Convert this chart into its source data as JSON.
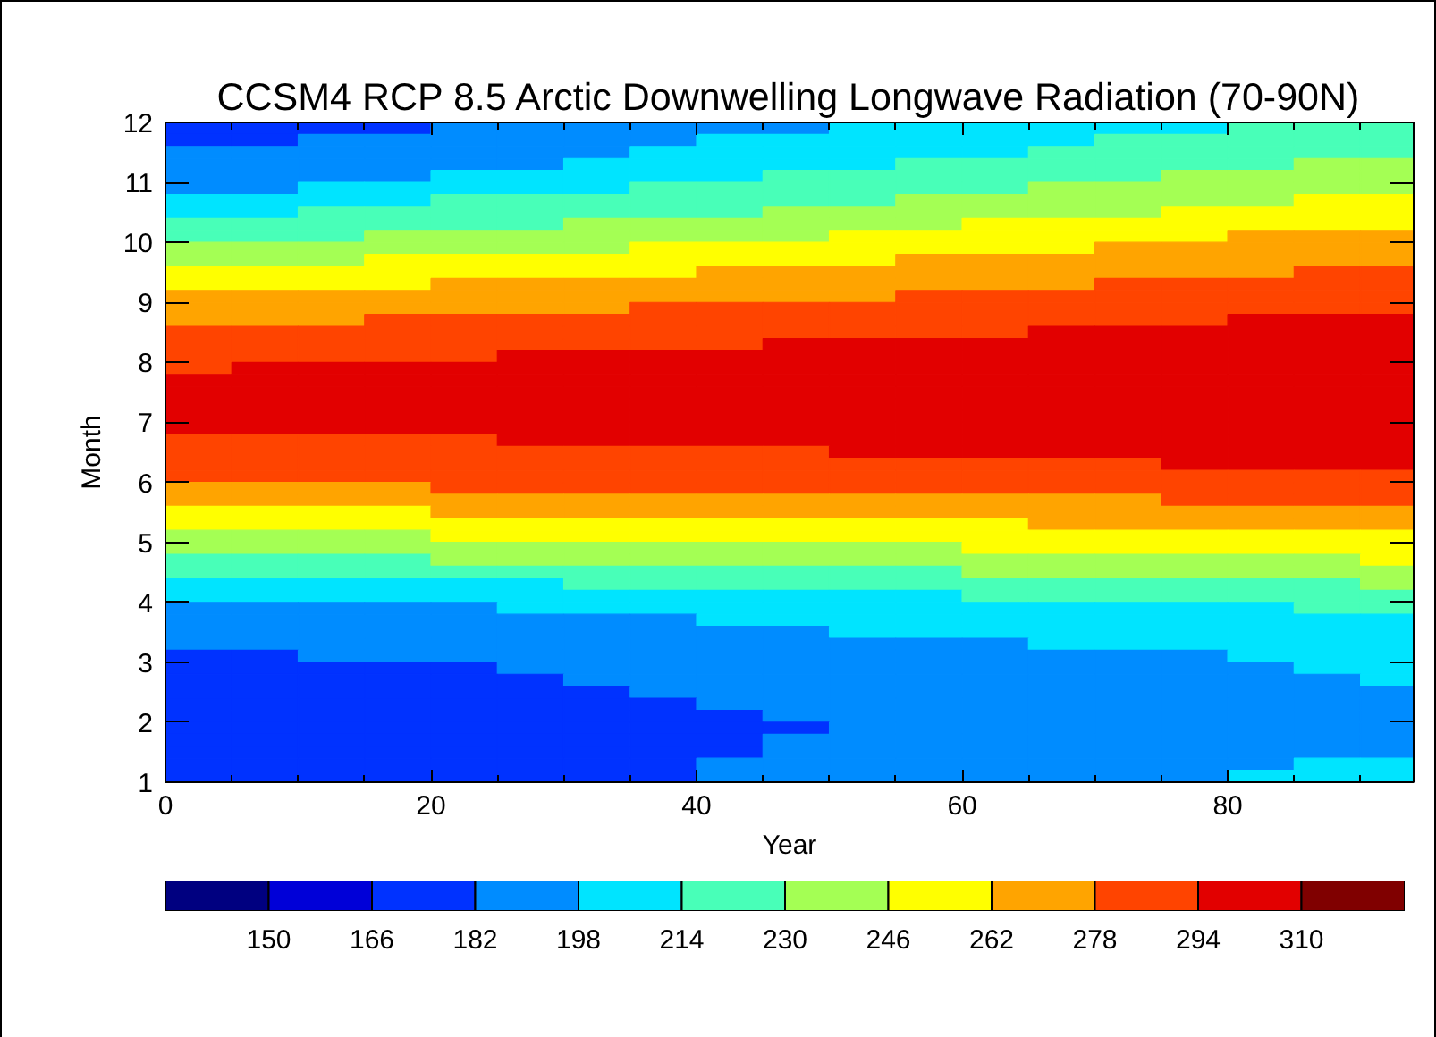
{
  "chart_data": {
    "type": "heatmap",
    "title": "CCSM4 RCP 8.5 Arctic Downwelling Longwave Radiation (70-90N)",
    "xlabel": "Year",
    "ylabel": "Month",
    "x": [
      2.5,
      7.5,
      12.5,
      17.5,
      22.5,
      27.5,
      32.5,
      37.5,
      42.5,
      47.5,
      52.5,
      57.5,
      62.5,
      67.5,
      72.5,
      77.5,
      82.5,
      87.5,
      92.5
    ],
    "cells": [
      [
        174,
        174,
        174,
        174,
        190,
        190,
        190,
        190,
        190,
        190,
        206,
        206,
        206,
        206,
        206,
        206,
        222,
        222,
        222
      ],
      [
        174,
        174,
        190,
        190,
        190,
        190,
        190,
        190,
        206,
        206,
        206,
        206,
        206,
        206,
        222,
        222,
        222,
        222,
        222
      ],
      [
        190,
        190,
        190,
        190,
        190,
        190,
        190,
        206,
        206,
        206,
        206,
        206,
        206,
        222,
        222,
        222,
        222,
        222,
        222
      ],
      [
        190,
        190,
        190,
        190,
        190,
        190,
        206,
        206,
        206,
        206,
        206,
        222,
        222,
        222,
        222,
        222,
        222,
        238,
        238
      ],
      [
        190,
        190,
        190,
        190,
        206,
        206,
        206,
        206,
        206,
        222,
        222,
        222,
        222,
        222,
        222,
        238,
        238,
        238,
        238
      ],
      [
        190,
        190,
        206,
        206,
        206,
        206,
        206,
        222,
        222,
        222,
        222,
        222,
        222,
        238,
        238,
        238,
        238,
        238,
        238
      ],
      [
        206,
        206,
        206,
        206,
        222,
        222,
        222,
        222,
        222,
        222,
        222,
        238,
        238,
        238,
        238,
        238,
        238,
        254,
        254
      ],
      [
        206,
        206,
        222,
        222,
        222,
        222,
        222,
        222,
        222,
        238,
        238,
        238,
        238,
        238,
        238,
        254,
        254,
        254,
        254
      ],
      [
        222,
        222,
        222,
        222,
        222,
        222,
        238,
        238,
        238,
        238,
        238,
        238,
        254,
        254,
        254,
        254,
        254,
        254,
        254
      ],
      [
        222,
        222,
        222,
        238,
        238,
        238,
        238,
        238,
        238,
        238,
        254,
        254,
        254,
        254,
        254,
        254,
        270,
        270,
        270
      ],
      [
        238,
        238,
        238,
        238,
        238,
        238,
        238,
        254,
        254,
        254,
        254,
        254,
        254,
        254,
        270,
        270,
        270,
        270,
        270
      ],
      [
        238,
        238,
        238,
        254,
        254,
        254,
        254,
        254,
        254,
        254,
        254,
        270,
        270,
        270,
        270,
        270,
        270,
        270,
        270
      ],
      [
        254,
        254,
        254,
        254,
        254,
        254,
        254,
        254,
        270,
        270,
        270,
        270,
        270,
        270,
        270,
        270,
        270,
        286,
        286
      ],
      [
        254,
        254,
        254,
        254,
        270,
        270,
        270,
        270,
        270,
        270,
        270,
        270,
        270,
        270,
        286,
        286,
        286,
        286,
        286
      ],
      [
        270,
        270,
        270,
        270,
        270,
        270,
        270,
        270,
        270,
        270,
        270,
        286,
        286,
        286,
        286,
        286,
        286,
        286,
        286
      ],
      [
        270,
        270,
        270,
        270,
        270,
        270,
        270,
        286,
        286,
        286,
        286,
        286,
        286,
        286,
        286,
        286,
        286,
        286,
        286
      ],
      [
        270,
        270,
        270,
        286,
        286,
        286,
        286,
        286,
        286,
        286,
        286,
        286,
        286,
        286,
        286,
        286,
        302,
        302,
        302
      ],
      [
        286,
        286,
        286,
        286,
        286,
        286,
        286,
        286,
        286,
        286,
        286,
        286,
        286,
        302,
        302,
        302,
        302,
        302,
        302
      ],
      [
        286,
        286,
        286,
        286,
        286,
        286,
        286,
        286,
        286,
        302,
        302,
        302,
        302,
        302,
        302,
        302,
        302,
        302,
        302
      ],
      [
        286,
        286,
        286,
        286,
        286,
        302,
        302,
        302,
        302,
        302,
        302,
        302,
        302,
        302,
        302,
        302,
        302,
        302,
        302
      ],
      [
        286,
        302,
        302,
        302,
        302,
        302,
        302,
        302,
        302,
        302,
        302,
        302,
        302,
        302,
        302,
        302,
        302,
        302,
        302
      ],
      [
        302,
        302,
        302,
        302,
        302,
        302,
        302,
        302,
        302,
        302,
        302,
        302,
        302,
        302,
        302,
        302,
        302,
        302,
        302
      ],
      [
        302,
        302,
        302,
        302,
        302,
        302,
        302,
        302,
        302,
        302,
        302,
        302,
        302,
        302,
        302,
        302,
        302,
        302,
        302
      ],
      [
        302,
        302,
        302,
        302,
        302,
        302,
        302,
        302,
        302,
        302,
        302,
        302,
        302,
        302,
        302,
        302,
        302,
        302,
        302
      ],
      [
        302,
        302,
        302,
        302,
        302,
        302,
        302,
        302,
        302,
        302,
        302,
        302,
        302,
        302,
        302,
        302,
        302,
        302,
        302
      ],
      [
        302,
        302,
        302,
        302,
        302,
        302,
        302,
        302,
        302,
        302,
        302,
        302,
        302,
        302,
        302,
        302,
        302,
        302,
        302
      ],
      [
        286,
        286,
        286,
        286,
        286,
        302,
        302,
        302,
        302,
        302,
        302,
        302,
        302,
        302,
        302,
        302,
        302,
        302,
        302
      ],
      [
        286,
        286,
        286,
        286,
        286,
        286,
        286,
        286,
        286,
        286,
        302,
        302,
        302,
        302,
        302,
        302,
        302,
        302,
        302
      ],
      [
        286,
        286,
        286,
        286,
        286,
        286,
        286,
        286,
        286,
        286,
        286,
        286,
        286,
        286,
        286,
        302,
        302,
        302,
        302
      ],
      [
        286,
        286,
        286,
        286,
        286,
        286,
        286,
        286,
        286,
        286,
        286,
        286,
        286,
        286,
        286,
        286,
        286,
        286,
        286
      ],
      [
        270,
        270,
        270,
        270,
        286,
        286,
        286,
        286,
        286,
        286,
        286,
        286,
        286,
        286,
        286,
        286,
        286,
        286,
        286
      ],
      [
        270,
        270,
        270,
        270,
        270,
        270,
        270,
        270,
        270,
        270,
        270,
        270,
        270,
        270,
        270,
        286,
        286,
        286,
        286
      ],
      [
        254,
        254,
        254,
        254,
        270,
        270,
        270,
        270,
        270,
        270,
        270,
        270,
        270,
        270,
        270,
        270,
        270,
        270,
        270
      ],
      [
        254,
        254,
        254,
        254,
        254,
        254,
        254,
        254,
        254,
        254,
        254,
        254,
        254,
        270,
        270,
        270,
        270,
        270,
        270
      ],
      [
        238,
        238,
        238,
        238,
        254,
        254,
        254,
        254,
        254,
        254,
        254,
        254,
        254,
        254,
        254,
        254,
        254,
        254,
        254
      ],
      [
        238,
        238,
        238,
        238,
        238,
        238,
        238,
        238,
        238,
        238,
        238,
        238,
        254,
        254,
        254,
        254,
        254,
        254,
        254
      ],
      [
        222,
        222,
        222,
        222,
        238,
        238,
        238,
        238,
        238,
        238,
        238,
        238,
        238,
        238,
        238,
        238,
        238,
        238,
        254
      ],
      [
        222,
        222,
        222,
        222,
        222,
        222,
        222,
        222,
        222,
        222,
        222,
        222,
        238,
        238,
        238,
        238,
        238,
        238,
        238
      ],
      [
        206,
        206,
        206,
        206,
        206,
        206,
        222,
        222,
        222,
        222,
        222,
        222,
        222,
        222,
        222,
        222,
        222,
        222,
        238
      ],
      [
        206,
        206,
        206,
        206,
        206,
        206,
        206,
        206,
        206,
        206,
        206,
        206,
        222,
        222,
        222,
        222,
        222,
        222,
        222
      ],
      [
        190,
        190,
        190,
        190,
        190,
        206,
        206,
        206,
        206,
        206,
        206,
        206,
        206,
        206,
        206,
        206,
        206,
        222,
        222
      ],
      [
        190,
        190,
        190,
        190,
        190,
        190,
        190,
        190,
        206,
        206,
        206,
        206,
        206,
        206,
        206,
        206,
        206,
        206,
        206
      ],
      [
        190,
        190,
        190,
        190,
        190,
        190,
        190,
        190,
        190,
        190,
        206,
        206,
        206,
        206,
        206,
        206,
        206,
        206,
        206
      ],
      [
        190,
        190,
        190,
        190,
        190,
        190,
        190,
        190,
        190,
        190,
        190,
        190,
        190,
        206,
        206,
        206,
        206,
        206,
        206
      ],
      [
        174,
        174,
        190,
        190,
        190,
        190,
        190,
        190,
        190,
        190,
        190,
        190,
        190,
        190,
        190,
        190,
        206,
        206,
        206
      ],
      [
        174,
        174,
        174,
        174,
        174,
        190,
        190,
        190,
        190,
        190,
        190,
        190,
        190,
        190,
        190,
        190,
        190,
        206,
        206
      ],
      [
        174,
        174,
        174,
        174,
        174,
        174,
        190,
        190,
        190,
        190,
        190,
        190,
        190,
        190,
        190,
        190,
        190,
        190,
        206
      ],
      [
        174,
        174,
        174,
        174,
        174,
        174,
        174,
        190,
        190,
        190,
        190,
        190,
        190,
        190,
        190,
        190,
        190,
        190,
        190
      ],
      [
        174,
        174,
        174,
        174,
        174,
        174,
        174,
        174,
        190,
        190,
        190,
        190,
        190,
        190,
        190,
        190,
        190,
        190,
        190
      ],
      [
        174,
        174,
        174,
        174,
        174,
        174,
        174,
        174,
        174,
        190,
        190,
        190,
        190,
        190,
        190,
        190,
        190,
        190,
        190
      ],
      [
        174,
        174,
        174,
        174,
        174,
        174,
        174,
        174,
        174,
        174,
        190,
        190,
        190,
        190,
        190,
        190,
        190,
        190,
        190
      ],
      [
        174,
        174,
        174,
        174,
        174,
        174,
        174,
        174,
        174,
        190,
        190,
        190,
        190,
        190,
        190,
        190,
        190,
        190,
        190
      ],
      [
        174,
        174,
        174,
        174,
        174,
        174,
        174,
        174,
        174,
        190,
        190,
        190,
        190,
        190,
        190,
        190,
        190,
        190,
        190
      ],
      [
        174,
        174,
        174,
        174,
        174,
        174,
        174,
        174,
        190,
        190,
        190,
        190,
        190,
        190,
        190,
        190,
        190,
        206,
        206
      ],
      [
        174,
        174,
        174,
        174,
        174,
        174,
        174,
        174,
        190,
        190,
        190,
        190,
        190,
        190,
        190,
        190,
        206,
        206,
        206
      ]
    ],
    "xlim": [
      0,
      94
    ],
    "ylim": [
      1,
      12
    ],
    "xticks": [
      0,
      {
        "value": 5,
        "label": null
      },
      {
        "value": 10,
        "label": null
      },
      {
        "value": 15,
        "label": null
      },
      20,
      {
        "value": 25,
        "label": null
      },
      {
        "value": 30,
        "label": null
      },
      {
        "value": 35,
        "label": null
      },
      40,
      {
        "value": 45,
        "label": null
      },
      {
        "value": 50,
        "label": null
      },
      {
        "value": 55,
        "label": null
      },
      60,
      {
        "value": 65,
        "label": null
      },
      {
        "value": 70,
        "label": null
      },
      {
        "value": 75,
        "label": null
      },
      80,
      {
        "value": 85,
        "label": null
      },
      {
        "value": 90,
        "label": null
      }
    ],
    "yticks": [
      1,
      2,
      3,
      4,
      5,
      6,
      7,
      8,
      9,
      10,
      11,
      12
    ],
    "clim": [
      134,
      326
    ],
    "cticks": [
      150,
      166,
      182,
      198,
      214,
      230,
      246,
      262,
      278,
      294,
      310
    ],
    "colors": [
      "#000080",
      "#0000d8",
      "#0032ff",
      "#008cff",
      "#00e4ff",
      "#48ffb8",
      "#a4ff54",
      "#ffff00",
      "#ffa400",
      "#ff4400",
      "#e20000",
      "#800000"
    ]
  }
}
